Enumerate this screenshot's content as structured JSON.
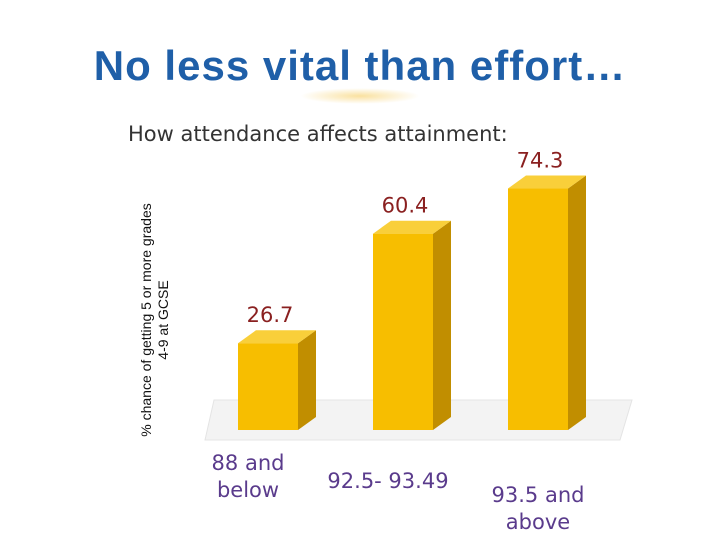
{
  "slide": {
    "title": "No less vital than effort…"
  },
  "chart_data": {
    "type": "bar",
    "title": "How attendance affects attainment:",
    "ylabel": "% chance of getting 5 or more grades 4-9 at GCSE",
    "xlabel": "",
    "categories": [
      "88 and below",
      "92.5- 93.49",
      "93.5 and above"
    ],
    "category_lines": [
      [
        "88 and",
        "below"
      ],
      [
        "92.5- 93.49"
      ],
      [
        "93.5 and",
        "above"
      ]
    ],
    "values": [
      26.7,
      60.4,
      74.3
    ],
    "value_labels": [
      "26.7",
      "60.4",
      "74.3"
    ],
    "ylim": [
      0,
      80
    ],
    "grid": false
  },
  "colors": {
    "title": "#1f5fa8",
    "bar_front": "#f7be00",
    "bar_top": "#f9cf3a",
    "bar_side": "#c18e00",
    "value_label": "#8a2020",
    "category_label": "#5a3b8c"
  }
}
